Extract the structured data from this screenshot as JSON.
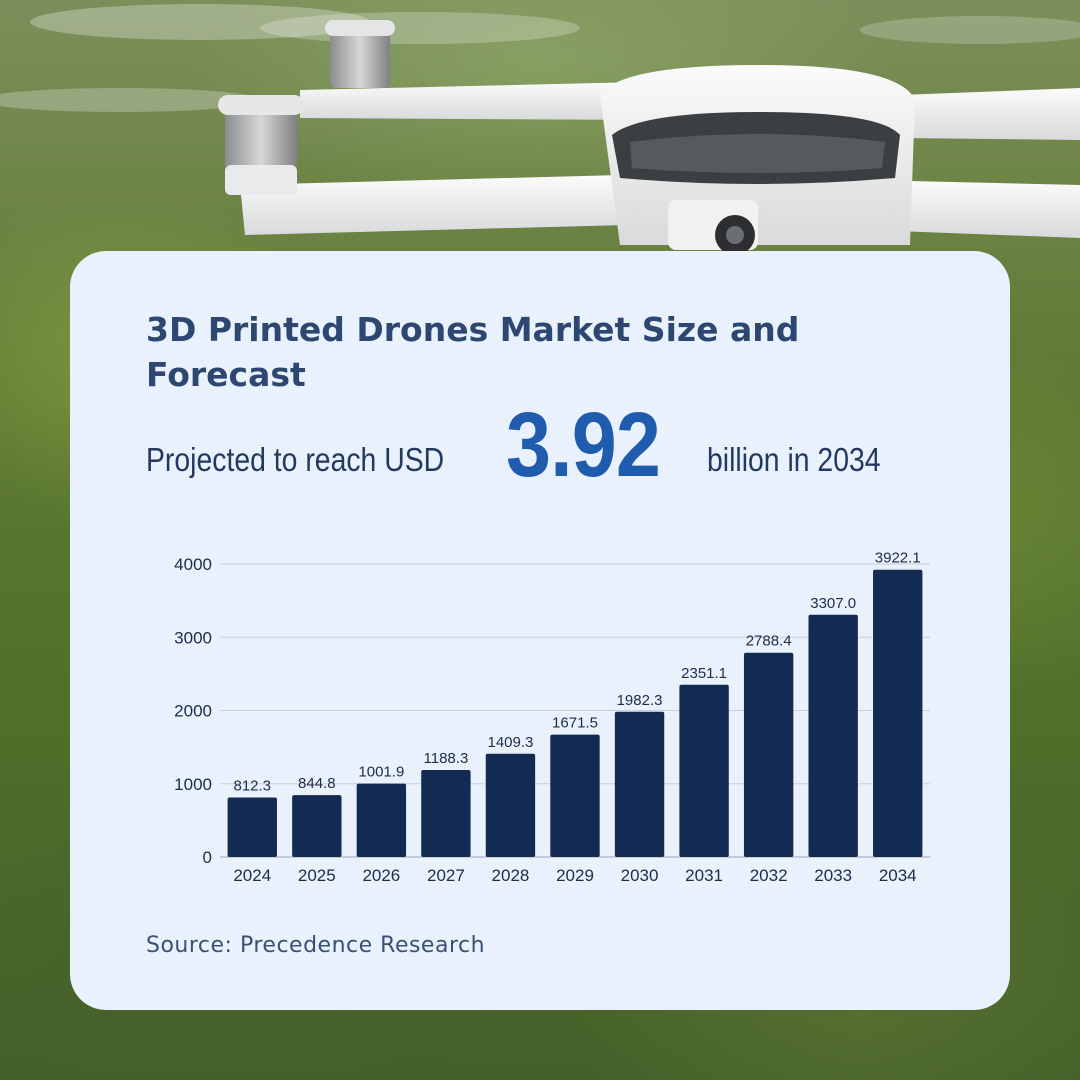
{
  "header": {
    "title": "3D Printed Drones Market Size and Forecast",
    "projected_prefix": "Projected to reach USD",
    "projected_value": "3.92",
    "projected_suffix": "billion in 2034"
  },
  "footer": {
    "source": "Source: Precedence Research"
  },
  "colors": {
    "bar": "#132a52",
    "accent": "#1f5cae",
    "card": "#e9f1fc",
    "title": "#2d4770",
    "grid": "#c7d0dc"
  },
  "chart_data": {
    "type": "bar",
    "title": "3D Printed Drones Market Size and Forecast",
    "xlabel": "",
    "ylabel": "",
    "categories": [
      "2024",
      "2025",
      "2026",
      "2027",
      "2028",
      "2029",
      "2030",
      "2031",
      "2032",
      "2033",
      "2034"
    ],
    "values": [
      812.3,
      844.8,
      1001.9,
      1188.3,
      1409.3,
      1671.5,
      1982.3,
      2351.1,
      2788.4,
      3307.0,
      3922.1
    ],
    "value_labels": [
      "812.3",
      "844.8",
      "1001.9",
      "1188.3",
      "1409.3",
      "1671.5",
      "1982.3",
      "2351.1",
      "2788.4",
      "3307.0",
      "3922.1"
    ],
    "ylim": [
      0,
      4000
    ],
    "yticks": [
      0,
      1000,
      2000,
      3000,
      4000
    ],
    "ytick_labels": [
      "0",
      "1000",
      "2000",
      "3000",
      "4000"
    ],
    "grid": true
  }
}
